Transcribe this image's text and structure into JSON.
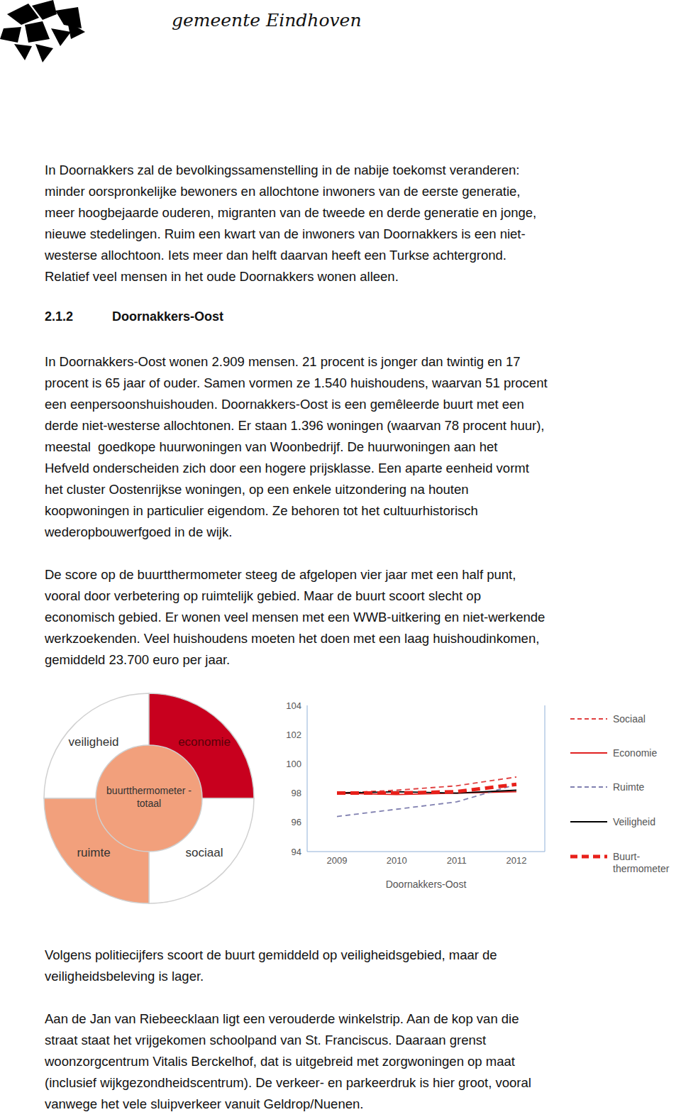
{
  "header": {
    "title": "gemeente Eindhoven"
  },
  "intro": {
    "lines": [
      "In Doornakkers zal de bevolkingssamenstelling in de nabije toekomst veranderen:",
      "minder oorspronkelijke bewoners en allochtone inwoners van de eerste generatie,",
      "meer hoogbejaarde ouderen, migranten van de tweede en derde generatie en jonge,",
      "nieuwe stedelingen. Ruim een kwart van de inwoners van Doornakkers is een niet-",
      "westerse allochtoon. Iets meer dan helft daarvan heeft een Turkse achtergrond.",
      "Relatief veel mensen in het oude Doornakkers wonen alleen."
    ]
  },
  "section": {
    "number": "2.1.2",
    "title": "Doornakkers-Oost"
  },
  "paragraphs": [
    {
      "lines": [
        "In Doornakkers-Oost wonen 2.909 mensen. 21 procent is jonger dan twintig en 17",
        "procent is 65 jaar of ouder. Samen vormen ze 1.540 huishoudens, waarvan 51 procent",
        "een eenpersoonshuishouden. Doornakkers-Oost is een gemêleerde buurt met een",
        "derde niet-westerse allochtonen. Er staan 1.396 woningen (waarvan 78 procent huur),",
        "meestal  goedkope huurwoningen van Woonbedrijf. De huurwoningen aan het",
        "Hefveld onderscheiden zich door een hogere prijsklasse. Een aparte eenheid vormt",
        "het cluster Oostenrijkse woningen, op een enkele uitzondering na houten",
        "koopwoningen in particulier eigendom. Ze behoren tot het cultuurhistorisch",
        "wederopbouwerfgoed in de wijk."
      ]
    },
    {
      "lines": [
        "De score op de buurtthermometer steeg de afgelopen vier jaar met een half punt,",
        "vooral door verbetering op ruimtelijk gebied. Maar de buurt scoort slecht op",
        "economisch gebied. Er wonen veel mensen met een WWB-uitkering en niet-werkende",
        "werkzoekenden. Veel huishoudens moeten het doen met een laag huishoudinkomen,",
        "gemiddeld 23.700 euro per jaar."
      ]
    }
  ],
  "diagram": {
    "center": {
      "lines": [
        "buurtthermometer -",
        "totaal"
      ],
      "color": "#f2a07c"
    },
    "segments": [
      {
        "label": "veiligheid",
        "color": "#ffffff"
      },
      {
        "label": "economie",
        "color": "#c8001e"
      },
      {
        "label": "sociaal",
        "color": "#ffffff"
      },
      {
        "label": "ruimte",
        "color": "#f2a07c"
      }
    ]
  },
  "chart_data": {
    "type": "line",
    "x_label": "Doornakkers-Oost",
    "categories": [
      "2009",
      "2010",
      "2011",
      "2012"
    ],
    "ylim": [
      94,
      104
    ],
    "yticks": [
      94,
      96,
      98,
      100,
      102,
      104
    ],
    "legend": "right",
    "series": [
      {
        "name": "Sociaal",
        "color": "#e04040",
        "line_style": "dashed",
        "values": [
          98.0,
          98.2,
          98.5,
          99.1
        ]
      },
      {
        "name": "Economie",
        "color": "#e02020",
        "line_style": "solid",
        "values": [
          98.0,
          97.9,
          98.0,
          98.1
        ]
      },
      {
        "name": "Ruimte",
        "color": "#8080b0",
        "line_style": "dashed",
        "values": [
          96.4,
          96.9,
          97.4,
          98.6
        ]
      },
      {
        "name": "Veiligheid",
        "color": "#000000",
        "line_style": "solid",
        "values": [
          98.0,
          98.1,
          98.0,
          98.2
        ]
      },
      {
        "name": "Buurt-thermometer",
        "color": "#e8201a",
        "line_style": "bold_dashed",
        "values": [
          98.0,
          98.0,
          98.1,
          98.6
        ]
      }
    ]
  },
  "closing": [
    {
      "lines": [
        "Volgens politiecijfers scoort de buurt gemiddeld op veiligheidsgebied, maar de",
        "veiligheidsbeleving is lager."
      ]
    },
    {
      "lines": [
        "Aan de Jan van Riebeecklaan ligt een verouderde winkelstrip. Aan de kop van die",
        "straat staat het vrijgekomen schoolpand van St. Franciscus. Daaraan grenst",
        "woonzorgcentrum Vitalis Berckelhof, dat is uitgebreid met zorgwoningen op maat",
        "(inclusief wijkgezondheidscentrum). De verkeer- en parkeerdruk is hier groot, vooral",
        "vanwege het vele sluipverkeer vanuit Geldrop/Nuenen."
      ]
    }
  ]
}
